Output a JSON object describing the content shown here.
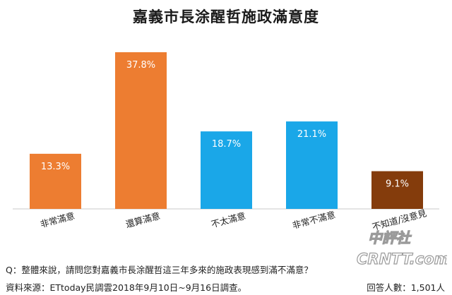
{
  "chart_data": {
    "type": "bar",
    "title": "嘉義市長涂醒哲施政滿意度",
    "categories": [
      "非常滿意",
      "還算滿意",
      "不太滿意",
      "非常不滿意",
      "不知道/沒意見"
    ],
    "values": [
      13.3,
      37.8,
      18.7,
      21.1,
      9.1
    ],
    "value_labels": [
      "13.3%",
      "37.8%",
      "18.7%",
      "21.1%",
      "9.1%"
    ],
    "colors": [
      "#ED7D31",
      "#ED7D31",
      "#1AA7E8",
      "#1AA7E8",
      "#843C0C"
    ],
    "ylim": [
      0,
      40
    ],
    "grid": false,
    "legend": "none"
  },
  "footer": {
    "question": "Q：整體來說，請問您對嘉義市長涂醒哲這三年多來的施政表現感到滿不滿意？",
    "source": "資料來源：ETtoday民調雲2018年9月10日~9月16日調查。",
    "sample": "回答人數：1,501人"
  },
  "watermark": {
    "line1": "中評社",
    "line2": "CRNTT.com"
  }
}
